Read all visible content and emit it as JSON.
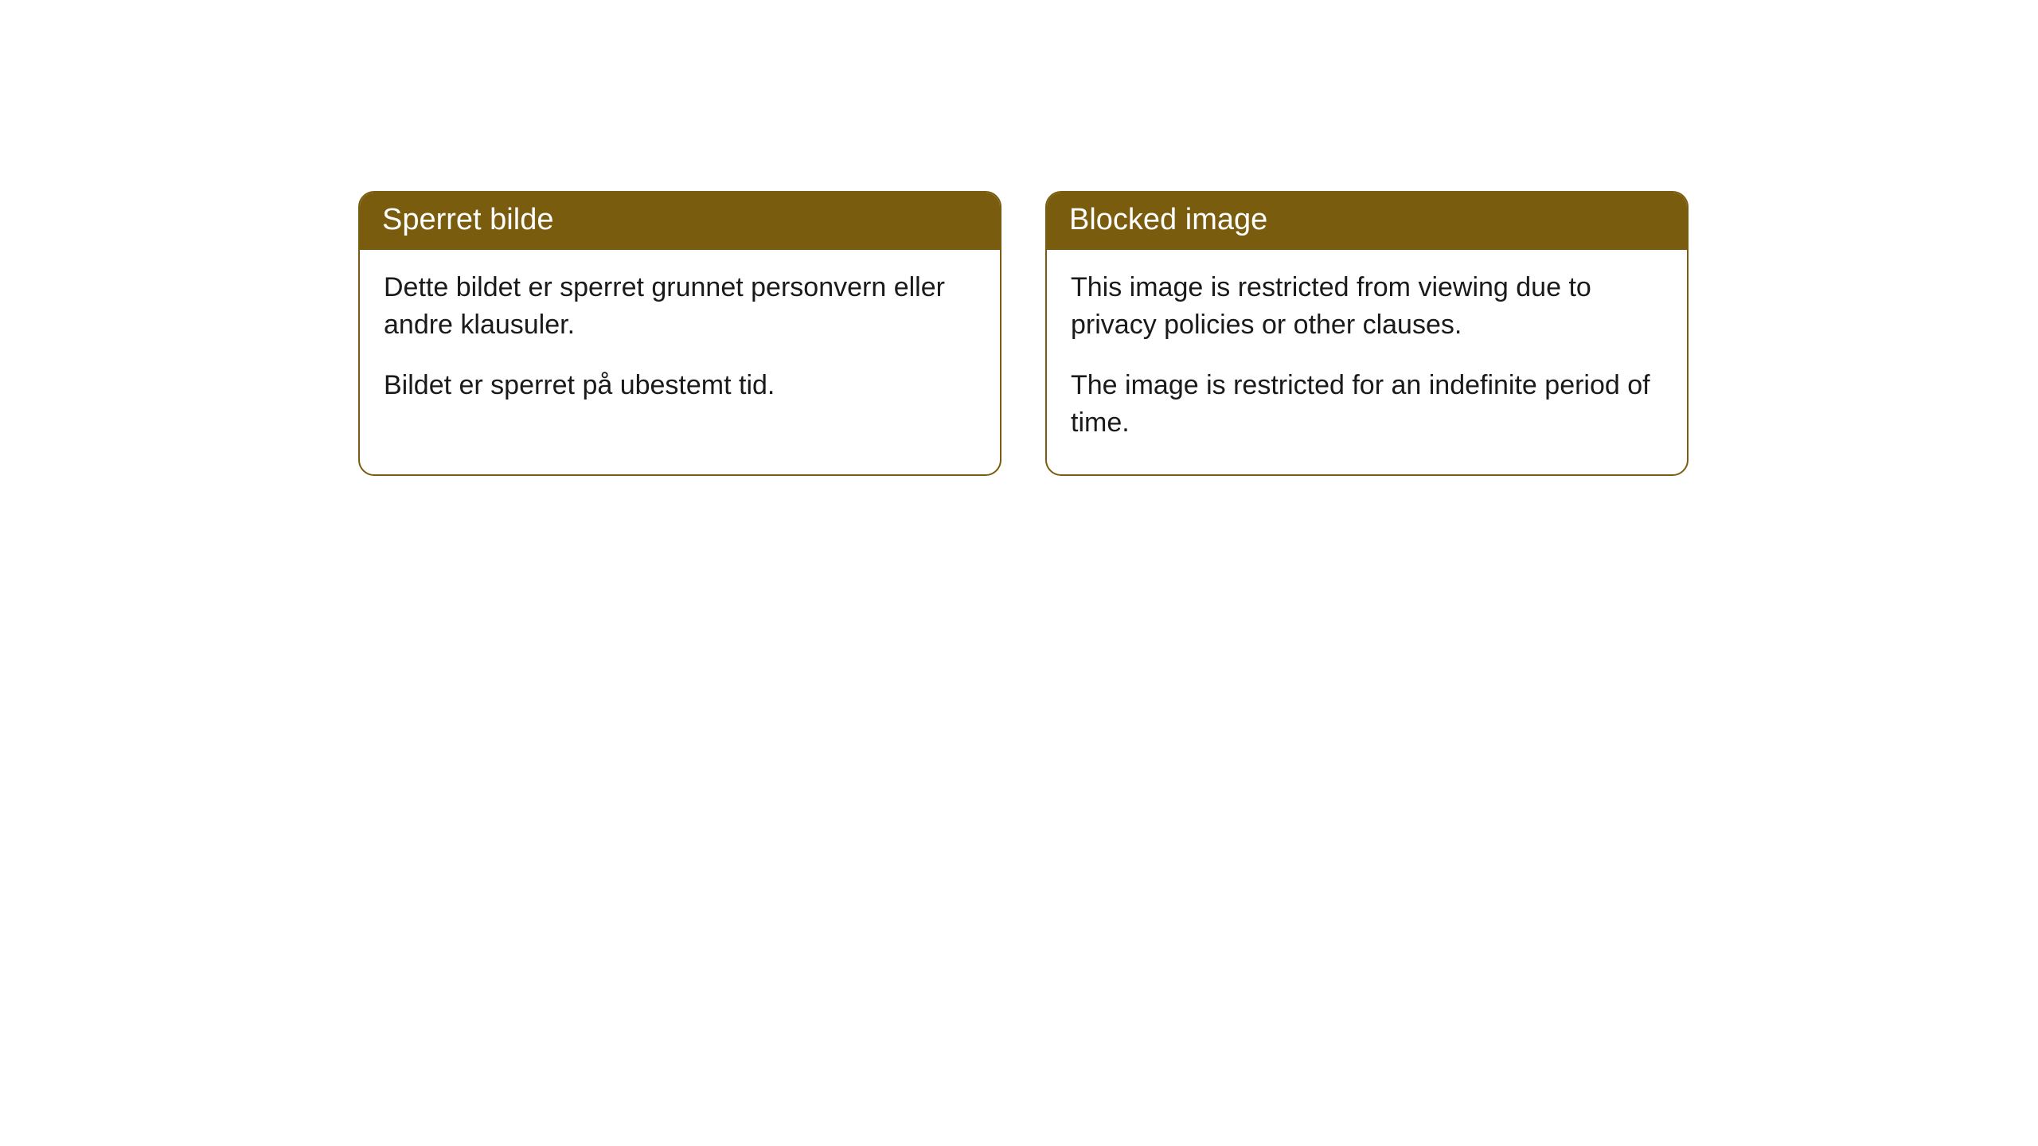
{
  "cards": [
    {
      "title": "Sperret bilde",
      "paragraph1": "Dette bildet er sperret grunnet personvern eller andre klausuler.",
      "paragraph2": "Bildet er sperret på ubestemt tid."
    },
    {
      "title": "Blocked image",
      "paragraph1": "This image is restricted from viewing due to privacy policies or other clauses.",
      "paragraph2": "The image is restricted for an indefinite period of time."
    }
  ],
  "styling": {
    "header_bg_color": "#7a5c0f",
    "header_text_color": "#ffffff",
    "border_color": "#7a5c0f",
    "body_bg_color": "#ffffff",
    "body_text_color": "#1a1a1a",
    "border_radius": 20,
    "header_fontsize": 38,
    "body_fontsize": 34
  }
}
